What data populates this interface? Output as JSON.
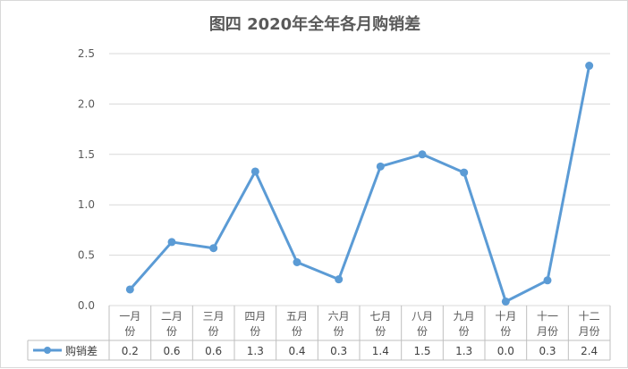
{
  "chart_data": {
    "type": "line",
    "title": "图四 2020年全年各月购销差",
    "categories": [
      [
        "一月",
        "份"
      ],
      [
        "二月",
        "份"
      ],
      [
        "三月",
        "份"
      ],
      [
        "四月",
        "份"
      ],
      [
        "五月",
        "份"
      ],
      [
        "六月",
        "份"
      ],
      [
        "七月",
        "份"
      ],
      [
        "八月",
        "份"
      ],
      [
        "九月",
        "份"
      ],
      [
        "十月",
        "份"
      ],
      [
        "十一",
        "月份"
      ],
      [
        "十二",
        "月份"
      ]
    ],
    "series": [
      {
        "name": "购销差",
        "values": [
          0.16,
          0.63,
          0.57,
          1.33,
          0.43,
          0.26,
          1.38,
          1.5,
          1.32,
          0.04,
          0.25,
          2.38
        ],
        "table_labels": [
          "0.2",
          "0.6",
          "0.6",
          "1.3",
          "0.4",
          "0.3",
          "1.4",
          "1.5",
          "1.3",
          "0.0",
          "0.3",
          "2.4"
        ],
        "color": "#5B9BD5"
      }
    ],
    "ylim": [
      0,
      2.5
    ],
    "yticks": [
      "0.0",
      "0.5",
      "1.0",
      "1.5",
      "2.0",
      "2.5"
    ],
    "grid": true,
    "legend_position": "data-table-left"
  }
}
